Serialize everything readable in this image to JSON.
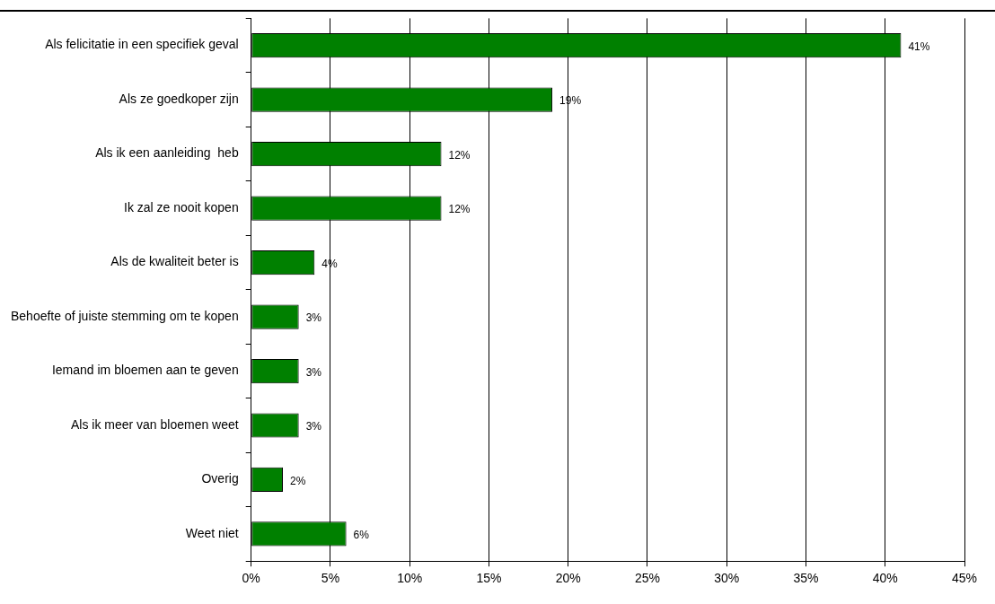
{
  "chart_data": {
    "type": "bar",
    "orientation": "horizontal",
    "categories": [
      "Als felicitatie in een specifiek geval",
      "Als ze goedkoper zijn",
      "Als ik een aanleiding  heb",
      "Ik zal ze nooit kopen",
      "Als de kwaliteit beter is",
      "Behoefte of juiste stemming om te kopen",
      "Iemand im bloemen aan te geven",
      "Als ik meer van bloemen weet",
      "Overig",
      "Weet niet"
    ],
    "values": [
      41,
      19,
      12,
      12,
      4,
      3,
      3,
      3,
      2,
      6
    ],
    "value_labels": [
      "41%",
      "19%",
      "12%",
      "12%",
      "4%",
      "3%",
      "3%",
      "3%",
      "2%",
      "6%"
    ],
    "color": "#008000",
    "xlim": [
      0,
      45
    ],
    "xticks": [
      {
        "value": 0,
        "label": "0%"
      },
      {
        "value": 5,
        "label": "5%"
      },
      {
        "value": 10,
        "label": "10%"
      },
      {
        "value": 15,
        "label": "15%"
      },
      {
        "value": 20,
        "label": "20%"
      },
      {
        "value": 25,
        "label": "25%"
      },
      {
        "value": 30,
        "label": "30%"
      },
      {
        "value": 35,
        "label": "35%"
      },
      {
        "value": 40,
        "label": "40%"
      },
      {
        "value": 45,
        "label": "45%"
      }
    ],
    "grid": "x",
    "legend": false
  }
}
